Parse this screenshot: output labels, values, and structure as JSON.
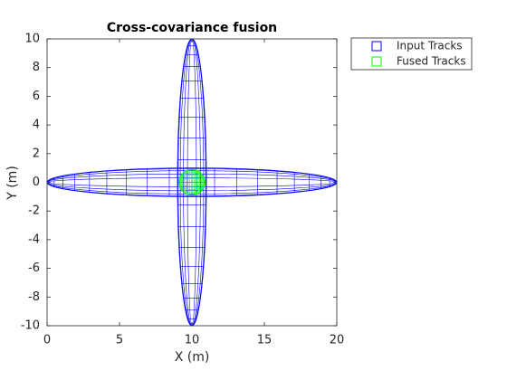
{
  "chart_data": {
    "type": "ellipse",
    "title": "Cross-covariance fusion",
    "x_label": "X (m)",
    "y_label": "Y (m)",
    "xlim": [
      0,
      20
    ],
    "ylim": [
      -10,
      10
    ],
    "xticks": [
      0,
      5,
      10,
      15,
      20
    ],
    "yticks": [
      -10,
      -8,
      -6,
      -4,
      -2,
      0,
      2,
      4,
      6,
      8,
      10
    ],
    "grid": false,
    "legend": "outside-right",
    "series": [
      {
        "name": "Input Tracks",
        "color": "#0000ff",
        "ellipses": [
          {
            "center": [
              10,
              0
            ],
            "radii": [
              10,
              1
            ]
          },
          {
            "center": [
              10,
              0
            ],
            "radii": [
              1,
              10
            ]
          }
        ]
      },
      {
        "name": "Fused Tracks",
        "color": "#00ff00",
        "ellipses": [
          {
            "center": [
              10,
              0
            ],
            "radii": [
              0.9,
              0.9
            ]
          }
        ]
      }
    ]
  }
}
